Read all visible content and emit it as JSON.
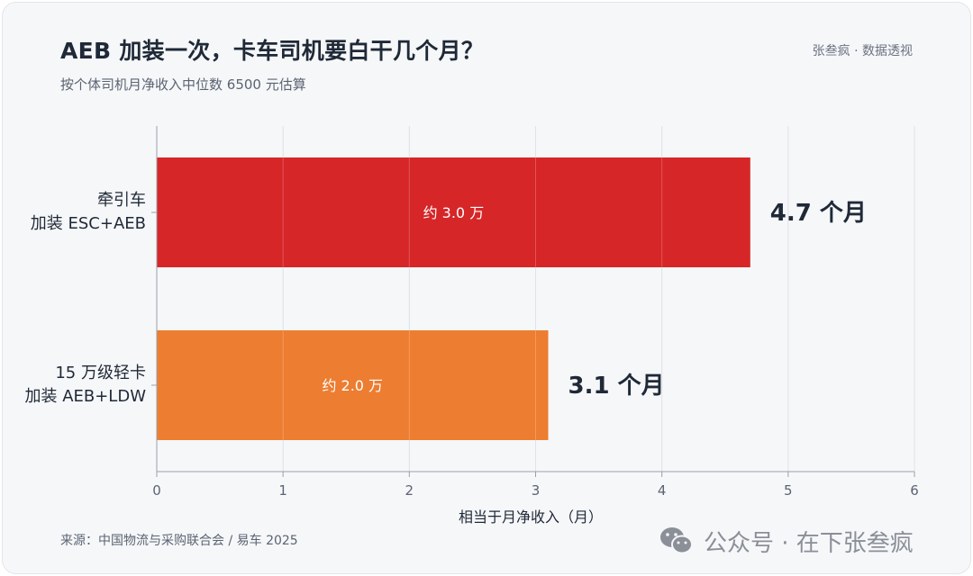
{
  "header": {
    "title": "AEB 加装一次，卡车司机要白干几个月？",
    "subtitle": "按个体司机月净收入中位数 6500 元估算",
    "byline": "张叁疯 · 数据透视"
  },
  "footer": {
    "source": "来源：中国物流与采购联合会 / 易车 2025",
    "watermark": "公众号 · 在下张叁疯",
    "watermark_icon": "wechat-icon"
  },
  "chart_data": {
    "type": "bar",
    "orientation": "horizontal",
    "title": "AEB 加装一次，卡车司机要白干几个月？",
    "subtitle": "按个体司机月净收入中位数 6500 元估算",
    "xlabel": "相当于月净收入（月）",
    "ylabel": "",
    "xlim": [
      0,
      6
    ],
    "xticks": [
      "0",
      "1",
      "2",
      "3",
      "4",
      "5",
      "6"
    ],
    "grid": true,
    "categories": [
      [
        "牵引车",
        "加装 ESC+AEB"
      ],
      [
        "15 万级轻卡",
        "加装 AEB+LDW"
      ]
    ],
    "values": [
      4.7,
      3.1
    ],
    "value_labels": [
      "4.7 个月",
      "3.1 个月"
    ],
    "inner_labels": [
      "约 3.0 万",
      "约 2.0 万"
    ],
    "colors": [
      "#d62628",
      "#ed7d31"
    ]
  }
}
